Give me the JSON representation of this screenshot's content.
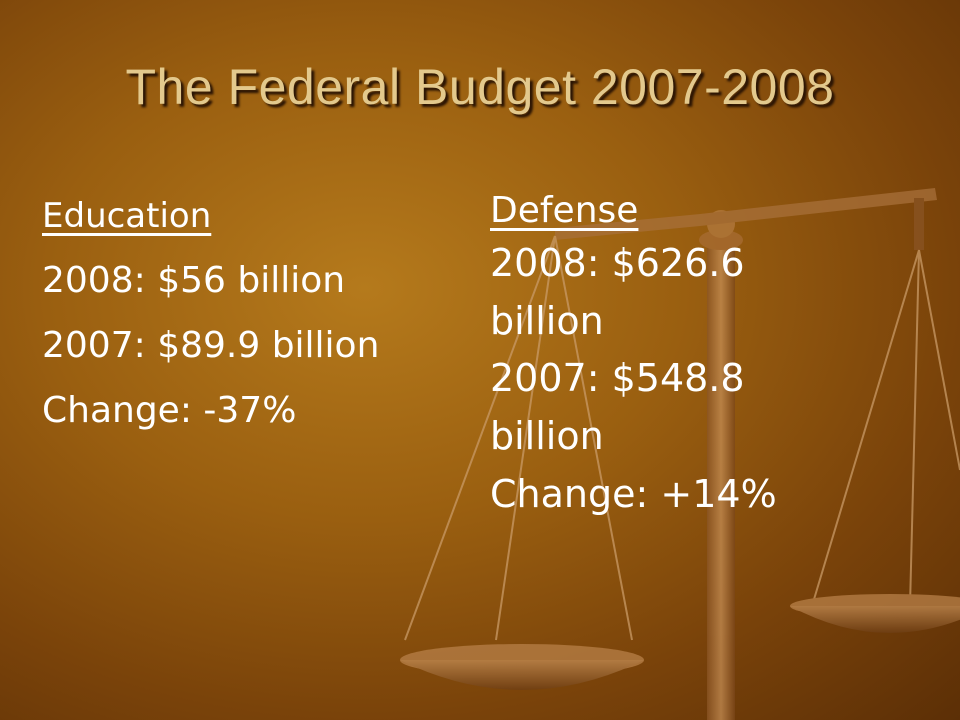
{
  "slide": {
    "title": "The Federal Budget 2007-2008",
    "education": {
      "heading": "Education",
      "y2008": "2008: $56 billion",
      "y2007": "2007: $89.9 billion",
      "change": "Change: -37%"
    },
    "defense": {
      "heading": "Defense",
      "y2008_a": "2008: $626.6",
      "y2008_b": "billion",
      "y2007_a": "2007: $548.8",
      "y2007_b": "billion",
      "change": "Change: +14%"
    }
  },
  "colors": {
    "background": "#9a5f10",
    "title": "#e3c98d",
    "text": "#ffffff",
    "scale": "#c98d4a"
  },
  "decoration": "balance-scale-icon"
}
